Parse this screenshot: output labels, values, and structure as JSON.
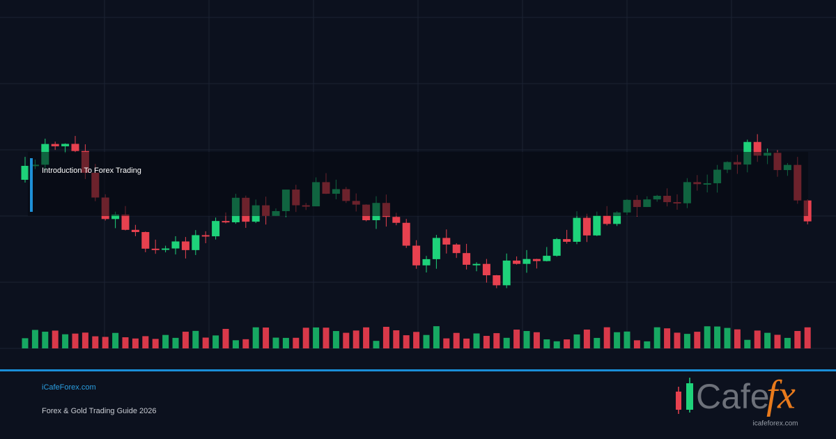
{
  "banner": {
    "title": "Introduction To Forex Trading"
  },
  "footer": {
    "site": "iCafeForex.com",
    "subtitle": "Forex & Gold Trading Guide 2026"
  },
  "logo": {
    "word": "Cafe",
    "accent": "fx",
    "url": "icafeforex.com"
  }
}
